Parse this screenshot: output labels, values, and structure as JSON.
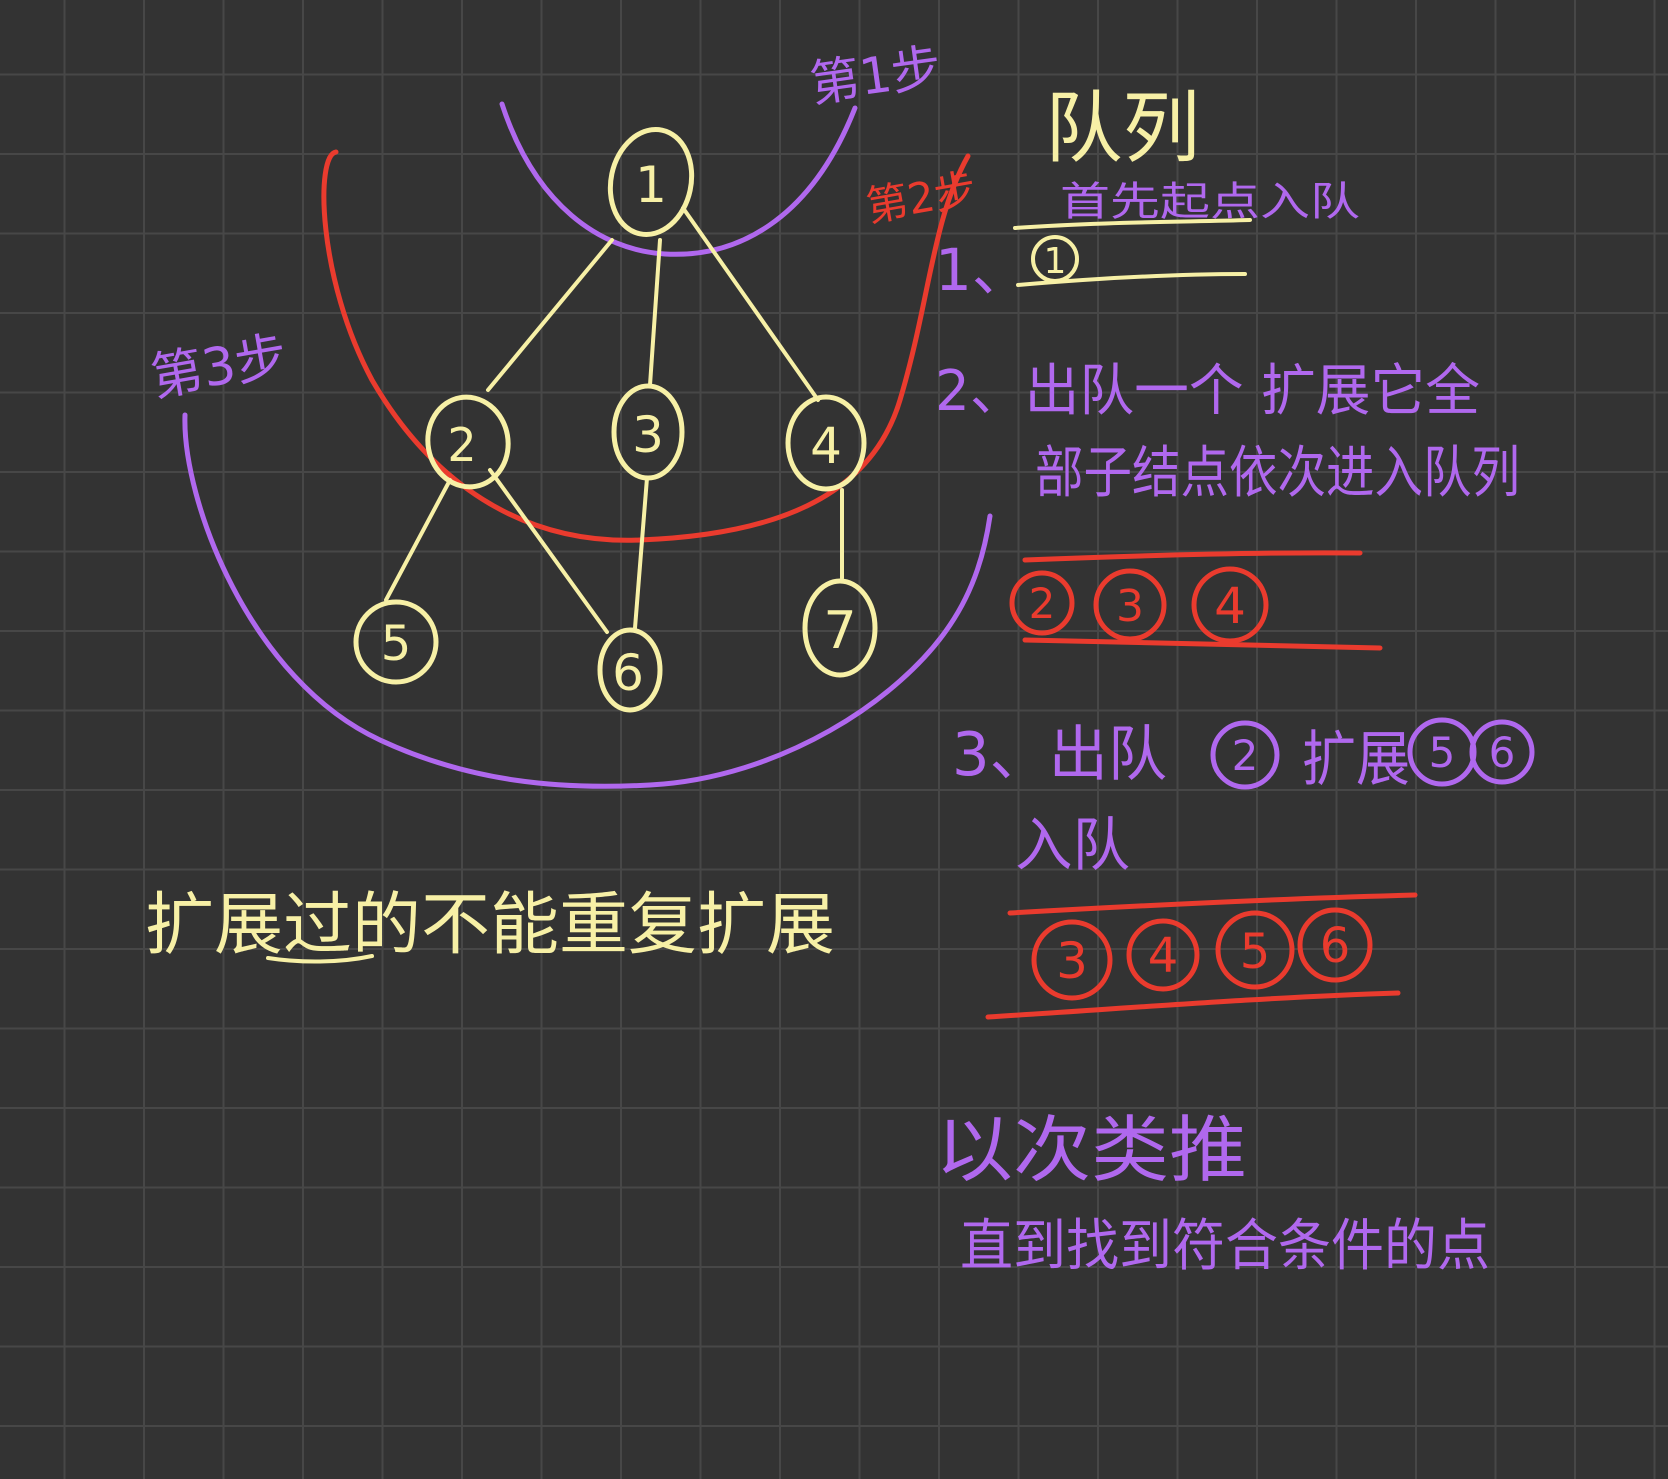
{
  "colors": {
    "background": "#333333",
    "grid": "#474747",
    "tree_ink": "#f7f0a6",
    "purple_ink": "#b068ee",
    "red_ink": "#ea3b2e"
  },
  "tree": {
    "nodes": [
      {
        "id": "1",
        "label": "1"
      },
      {
        "id": "2",
        "label": "2"
      },
      {
        "id": "3",
        "label": "3"
      },
      {
        "id": "4",
        "label": "4"
      },
      {
        "id": "5",
        "label": "5"
      },
      {
        "id": "6",
        "label": "6"
      },
      {
        "id": "7",
        "label": "7"
      }
    ],
    "edges": [
      {
        "from": "1",
        "to": "2"
      },
      {
        "from": "1",
        "to": "3"
      },
      {
        "from": "1",
        "to": "4"
      },
      {
        "from": "2",
        "to": "5"
      },
      {
        "from": "2",
        "to": "6"
      },
      {
        "from": "3",
        "to": "6"
      },
      {
        "from": "4",
        "to": "7"
      }
    ]
  },
  "step_labels": {
    "step1": "第1步",
    "step2": "第2步",
    "step3": "第3步"
  },
  "note_bottom": "扩展过的不能重复扩展",
  "queue": {
    "title": "队列",
    "subtitle": "首先起点入队",
    "step1_marker": "1、",
    "row1": [
      "1"
    ],
    "step2_line1": "2、出队一个 扩展它全",
    "step2_line2": "部子结点依次进入队列",
    "row2": [
      "2",
      "3",
      "4"
    ],
    "step3_prefix": "3、出队",
    "step3_node": "2",
    "step3_mid": "扩展",
    "step3_children": [
      "5",
      "6"
    ],
    "step3_line2": "入队",
    "row3": [
      "3",
      "4",
      "5",
      "6"
    ],
    "conclusion_line1": "以次类推",
    "conclusion_line2": "直到找到符合条件的点"
  }
}
